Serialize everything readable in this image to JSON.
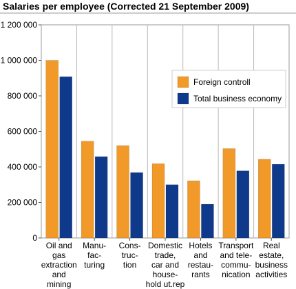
{
  "chart_data": {
    "type": "bar",
    "title": "Salaries per employee (Corrected 21 September 2009)",
    "xlabel": "",
    "ylabel": "",
    "ylim": [
      0,
      1200000
    ],
    "yticks": [
      0,
      200000,
      400000,
      600000,
      800000,
      1000000,
      1200000
    ],
    "ytick_labels": [
      "0",
      "200 000",
      "400 000",
      "600 000",
      "800 000",
      "1 000 000",
      "1 200 000"
    ],
    "grid": "vertical lines between categories",
    "legend_position": "right",
    "categories": [
      [
        "Oil and",
        "gas",
        "extraction",
        "and",
        "mining"
      ],
      [
        "Manu-",
        "fac-",
        "turing"
      ],
      [
        "Cons-",
        "truc-",
        "tion"
      ],
      [
        "Domestic",
        "trade,",
        "car and",
        "house-",
        "hold ut.rep"
      ],
      [
        "Hotels",
        "and",
        "restau-",
        "rants"
      ],
      [
        "Transport",
        "and tele-",
        "commu-",
        "nication"
      ],
      [
        "Real",
        "estate,",
        "business",
        "activities"
      ]
    ],
    "series": [
      {
        "name": "Foreign controll",
        "color": "#f19a2a",
        "values": [
          1000000,
          545000,
          520000,
          418000,
          322000,
          503000,
          443000
        ]
      },
      {
        "name": "Total business economy",
        "color": "#0f3a8c",
        "values": [
          908000,
          458000,
          368000,
          300000,
          190000,
          378000,
          415000
        ]
      }
    ]
  }
}
